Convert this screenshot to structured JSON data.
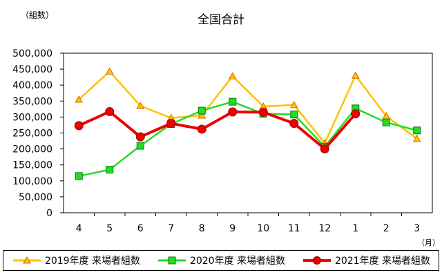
{
  "title": "全国合計",
  "y_unit": "（組数）",
  "x_unit": "（月）",
  "colors": {
    "s2019": "#FFC000",
    "s2020": "#22DD22",
    "s2021": "#EE0000"
  },
  "chart_data": {
    "type": "line",
    "title": "全国合計",
    "xlabel": "（月）",
    "ylabel": "（組数）",
    "categories": [
      "4",
      "5",
      "6",
      "7",
      "8",
      "9",
      "10",
      "11",
      "12",
      "1",
      "2",
      "3"
    ],
    "ylim": [
      0,
      500000
    ],
    "yticks": [
      0,
      50000,
      100000,
      150000,
      200000,
      250000,
      300000,
      350000,
      400000,
      450000,
      500000
    ],
    "ytick_labels": [
      "0",
      "50,000",
      "100,000",
      "150,000",
      "200,000",
      "250,000",
      "300,000",
      "350,000",
      "400,000",
      "450,000",
      "500,000"
    ],
    "grid": false,
    "legend_position": "bottom",
    "series": [
      {
        "name": "2019年度 来場者組数",
        "marker": "triangle",
        "values": [
          355000,
          443000,
          335000,
          297000,
          305000,
          428000,
          333000,
          338000,
          218000,
          430000,
          303000,
          232000
        ]
      },
      {
        "name": "2020年度 来場者組数",
        "marker": "square",
        "values": [
          115000,
          135000,
          210000,
          278000,
          320000,
          348000,
          310000,
          308000,
          207000,
          327000,
          283000,
          258000
        ]
      },
      {
        "name": "2021年度 来場者組数",
        "marker": "circle",
        "values": [
          273000,
          317000,
          238000,
          280000,
          262000,
          316000,
          315000,
          280000,
          200000,
          310000,
          null,
          null
        ]
      }
    ]
  }
}
